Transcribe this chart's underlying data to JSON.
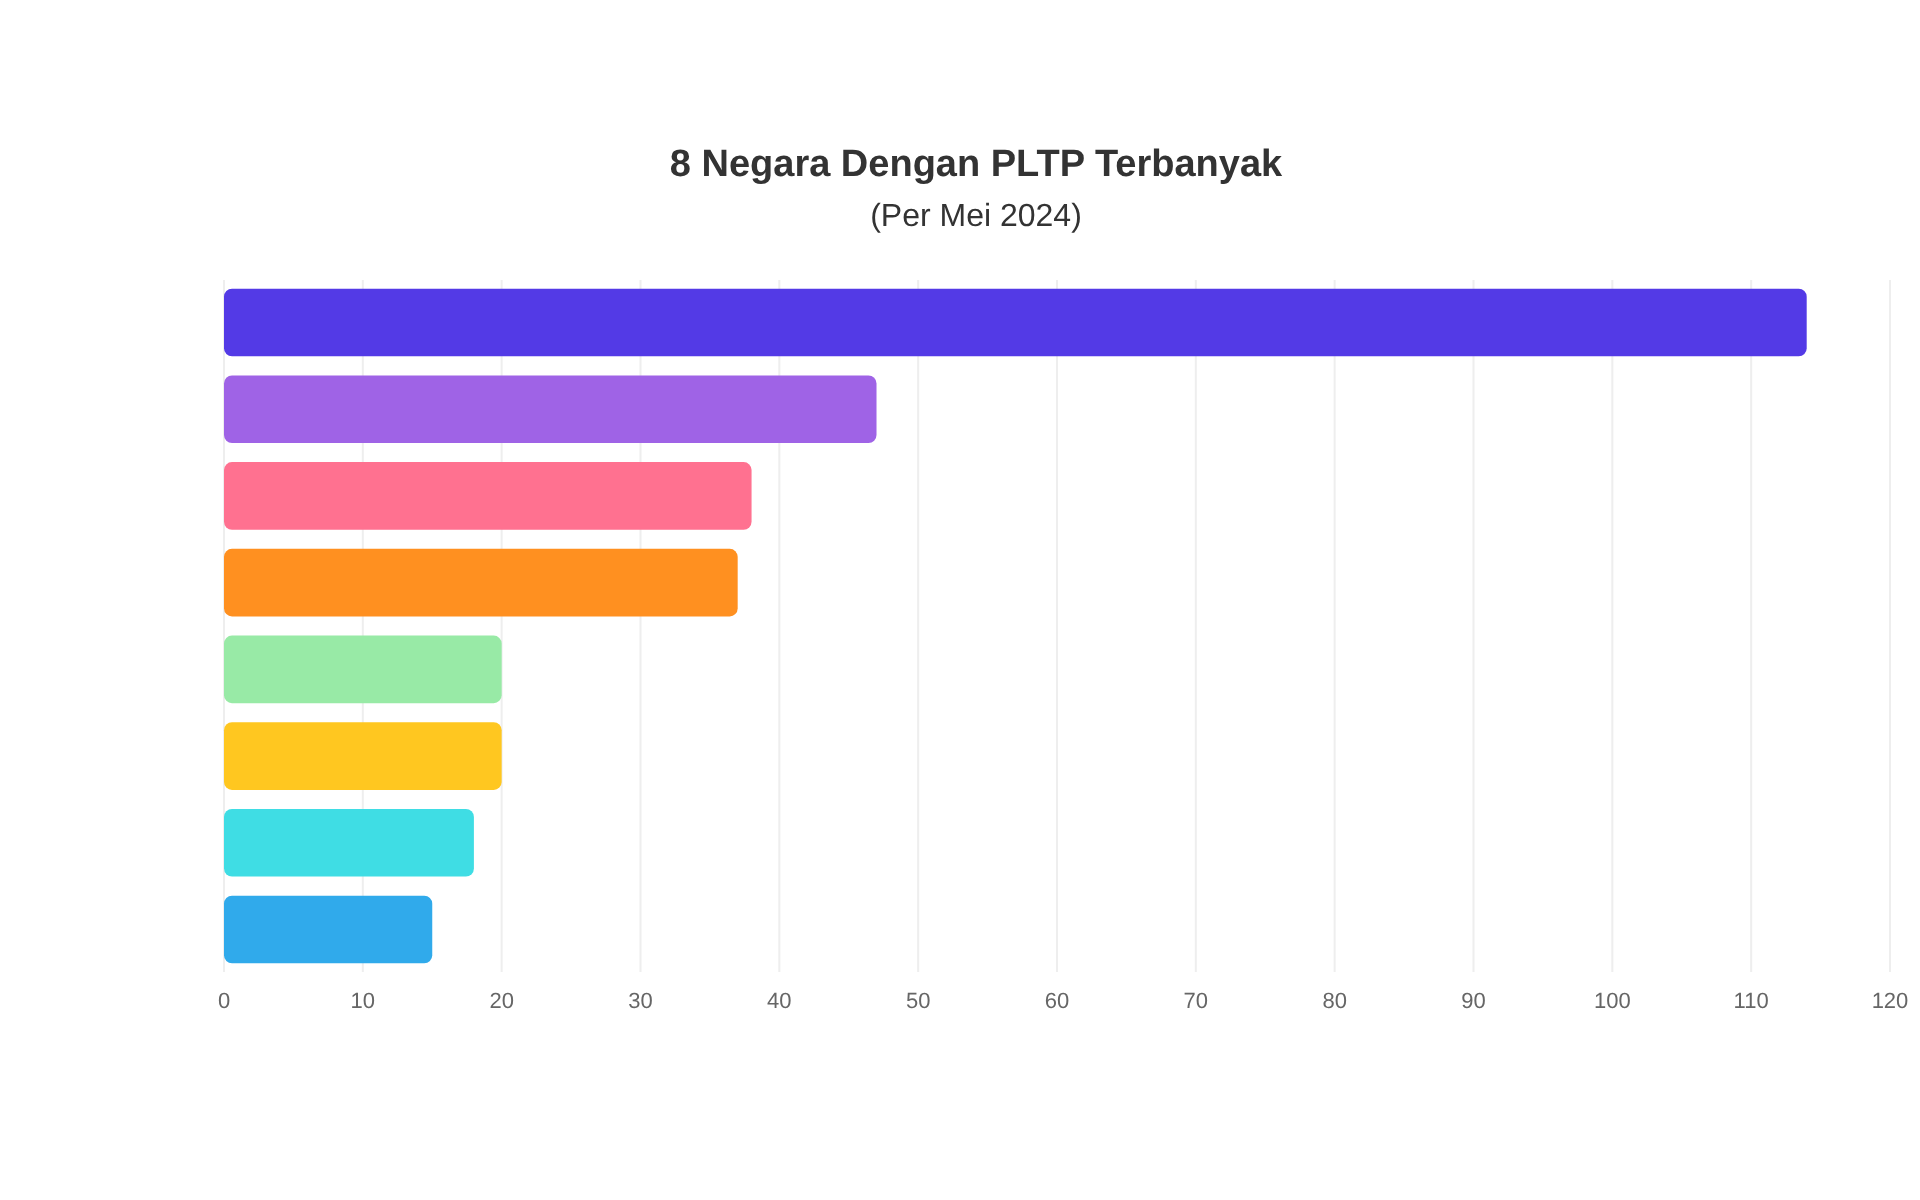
{
  "chart_data": {
    "type": "bar",
    "orientation": "horizontal",
    "title": "8 Negara Dengan PLTP Terbanyak",
    "subtitle": "(Per Mei 2024)",
    "categories": [
      null,
      null,
      null,
      null,
      null,
      null,
      null,
      null
    ],
    "values": [
      114,
      47,
      38,
      37,
      20,
      20,
      18,
      15
    ],
    "colors": [
      "#533ae6",
      "#9f63e6",
      "#ff7190",
      "#ff9020",
      "#98eaa6",
      "#ffc720",
      "#3fdde4",
      "#30aaeb"
    ],
    "xlim": [
      0,
      120
    ],
    "xticks": [
      0,
      10,
      20,
      30,
      40,
      50,
      60,
      70,
      80,
      90,
      100,
      110,
      120
    ],
    "grid": "x"
  }
}
